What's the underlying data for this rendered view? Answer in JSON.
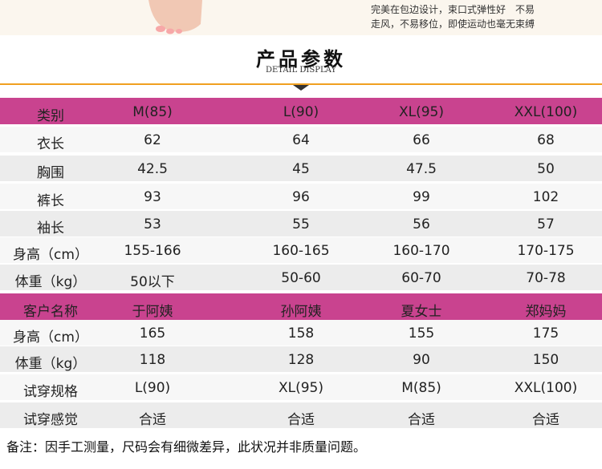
{
  "intro": [
    "完美在包边设计，束口式弹性好　不易",
    "走风，不易移位，即使运动也毫无束缚"
  ],
  "title": "产品参数",
  "subtitle": "DETAIL DISPLAY",
  "size_table": {
    "header": [
      "类别",
      "M(85)",
      "L(90)",
      "XL(95)",
      "XXL(100)"
    ],
    "rows": [
      [
        "衣长",
        "62",
        "64",
        "66",
        "68"
      ],
      [
        "胸围",
        "42.5",
        "45",
        "47.5",
        "50"
      ],
      [
        "裤长",
        "93",
        "96",
        "99",
        "102"
      ],
      [
        "袖长",
        "53",
        "55",
        "56",
        "57"
      ],
      [
        "身高（cm）",
        "155-166",
        "160-165",
        "160-170",
        "170-175"
      ],
      [
        "体重（kg）",
        "50以下",
        "50-60",
        "60-70",
        "70-78"
      ]
    ]
  },
  "fit_table": {
    "header": [
      "客户名称",
      "于阿姨",
      "孙阿姨",
      "夏女士",
      "郑妈妈"
    ],
    "rows": [
      [
        "身高（cm）",
        "165",
        "158",
        "155",
        "175"
      ],
      [
        "体重（kg）",
        "118",
        "128",
        "90",
        "150"
      ],
      [
        "试穿规格",
        "L(90)",
        "XL(95)",
        "M(85)",
        "XXL(100)"
      ],
      [
        "试穿感觉",
        "合适",
        "合适",
        "合适",
        "合适"
      ]
    ]
  },
  "note": "备注：因手工测量，尺码会有细微差异，此状况并非质量问题。"
}
